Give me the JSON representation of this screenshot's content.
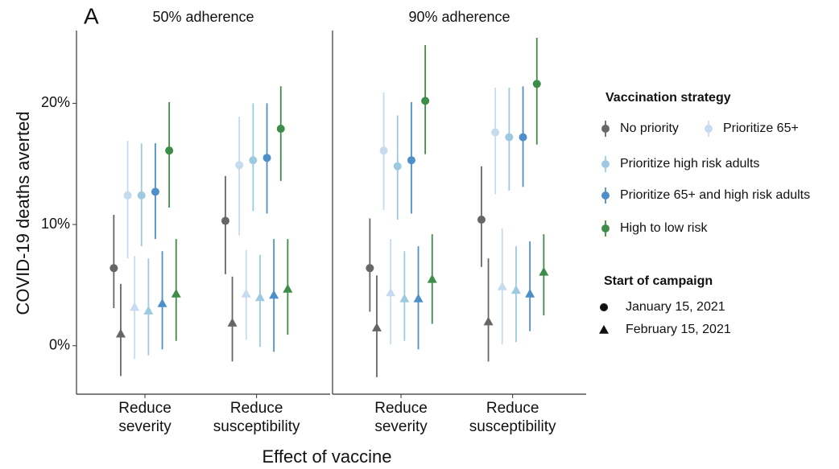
{
  "chart_data": {
    "type": "dot-errorbar",
    "panel_label": "A",
    "y_label": "COVID-19 deaths averted",
    "x_label": "Effect of vaccine",
    "ylim": [
      -4,
      26
    ],
    "yticks": [
      {
        "value": 0,
        "label": "0%"
      },
      {
        "value": 10,
        "label": "10%"
      },
      {
        "value": 20,
        "label": "20%"
      }
    ],
    "categories": [
      [
        "Reduce",
        "severity"
      ],
      [
        "Reduce",
        "susceptibility"
      ]
    ],
    "strategy_title": "Vaccination strategy",
    "strategies": [
      {
        "name": "No priority",
        "color": "#666666"
      },
      {
        "name": "Prioritize 65+",
        "color": "#c6dbef"
      },
      {
        "name": "Prioritize high risk adults",
        "color": "#9ecae1"
      },
      {
        "name": "Prioritize 65+ and high risk adults",
        "color": "#4f8fc9"
      },
      {
        "name": "High to low risk",
        "color": "#3d8c47"
      }
    ],
    "start_title": "Start of campaign",
    "starts": [
      {
        "name": "January 15, 2021",
        "shape": "circle"
      },
      {
        "name": "February 15, 2021",
        "shape": "triangle"
      }
    ],
    "facets": [
      {
        "title": "50% adherence",
        "series": [
          [
            {
              "values": [
                6.4,
                10.3
              ],
              "lower": [
                3.1,
                5.9
              ],
              "upper": [
                10.8,
                14.0
              ]
            },
            {
              "values": [
                12.4,
                14.9
              ],
              "lower": [
                7.2,
                9.1
              ],
              "upper": [
                16.9,
                18.9
              ]
            },
            {
              "values": [
                12.4,
                15.3
              ],
              "lower": [
                8.2,
                11.1
              ],
              "upper": [
                16.7,
                20.0
              ]
            },
            {
              "values": [
                12.7,
                15.5
              ],
              "lower": [
                8.8,
                10.9
              ],
              "upper": [
                16.7,
                20.0
              ]
            },
            {
              "values": [
                16.1,
                17.9
              ],
              "lower": [
                11.4,
                13.6
              ],
              "upper": [
                20.1,
                21.4
              ]
            }
          ],
          [
            {
              "values": [
                1.0,
                1.9
              ],
              "lower": [
                -2.5,
                -1.3
              ],
              "upper": [
                5.1,
                5.7
              ]
            },
            {
              "values": [
                3.2,
                4.3
              ],
              "lower": [
                -1.1,
                0.5
              ],
              "upper": [
                7.4,
                7.9
              ]
            },
            {
              "values": [
                2.9,
                4.0
              ],
              "lower": [
                -0.8,
                -0.1
              ],
              "upper": [
                7.2,
                7.5
              ]
            },
            {
              "values": [
                3.5,
                4.2
              ],
              "lower": [
                -0.3,
                -0.5
              ],
              "upper": [
                7.8,
                8.8
              ]
            },
            {
              "values": [
                4.3,
                4.7
              ],
              "lower": [
                0.4,
                0.9
              ],
              "upper": [
                8.8,
                8.8
              ]
            }
          ]
        ]
      },
      {
        "title": "90% adherence",
        "series": [
          [
            {
              "values": [
                6.4,
                10.4
              ],
              "lower": [
                2.8,
                6.5
              ],
              "upper": [
                10.5,
                14.8
              ]
            },
            {
              "values": [
                16.1,
                17.6
              ],
              "lower": [
                11.2,
                12.5
              ],
              "upper": [
                20.9,
                21.3
              ]
            },
            {
              "values": [
                14.8,
                17.2
              ],
              "lower": [
                10.4,
                12.8
              ],
              "upper": [
                19.0,
                21.3
              ]
            },
            {
              "values": [
                15.3,
                17.2
              ],
              "lower": [
                10.9,
                13.1
              ],
              "upper": [
                20.1,
                21.4
              ]
            },
            {
              "values": [
                20.2,
                21.6
              ],
              "lower": [
                15.8,
                16.6
              ],
              "upper": [
                24.8,
                25.4
              ]
            }
          ],
          [
            {
              "values": [
                1.5,
                2.0
              ],
              "lower": [
                -2.6,
                -1.3
              ],
              "upper": [
                5.8,
                7.2
              ]
            },
            {
              "values": [
                4.4,
                4.9
              ],
              "lower": [
                0.1,
                0.1
              ],
              "upper": [
                8.8,
                9.7
              ]
            },
            {
              "values": [
                3.9,
                4.6
              ],
              "lower": [
                0.4,
                0.3
              ],
              "upper": [
                7.8,
                8.2
              ]
            },
            {
              "values": [
                3.9,
                4.3
              ],
              "lower": [
                -0.3,
                1.2
              ],
              "upper": [
                8.2,
                8.6
              ]
            },
            {
              "values": [
                5.5,
                6.1
              ],
              "lower": [
                1.8,
                2.5
              ],
              "upper": [
                9.2,
                9.2
              ]
            }
          ]
        ]
      }
    ]
  }
}
